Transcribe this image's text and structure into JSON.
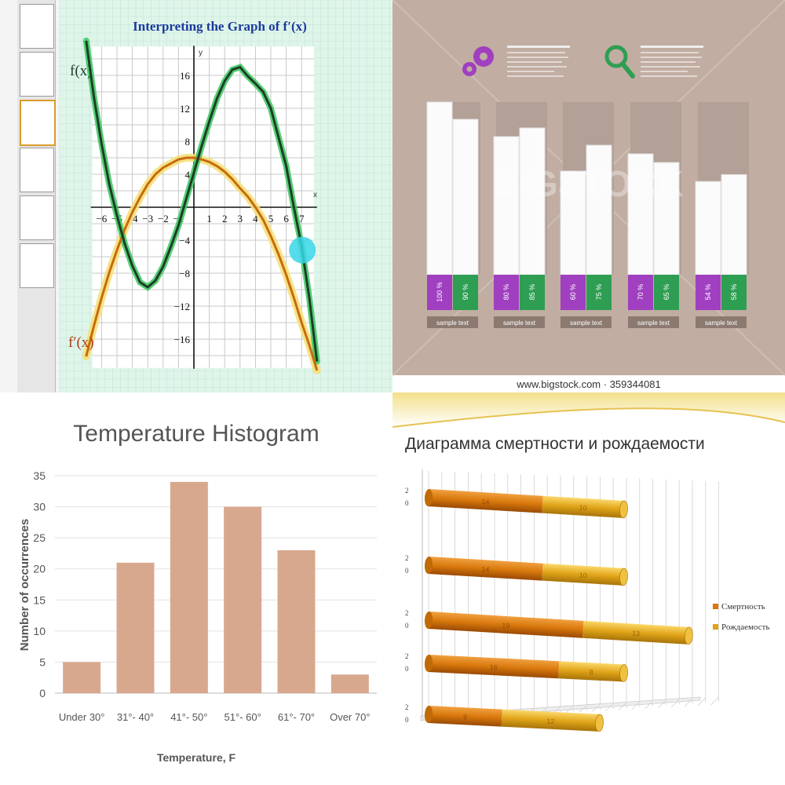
{
  "colors": {
    "graph_bg": "#dff5ea",
    "graph_grid": "#bfe6d4",
    "f_curve": "#1e3c2a",
    "f_highlight": "#38c85a",
    "fprime_curve": "#c76a10",
    "fprime_highlight": "#f5e07a",
    "title_blue": "#1a3a9c",
    "cyan_marker": "#38d6e8",
    "infographic_bg": "#c1ada2",
    "purple": "#a03fc0",
    "green": "#2e9e52",
    "hist_bar": "#d8a88e",
    "gold": "#e0a418",
    "orange": "#d8780c"
  },
  "icons": [
    "gears-icon",
    "magnifier-icon"
  ],
  "chart_data": [
    {
      "type": "line",
      "title": "Interpreting the Graph of f′(x)",
      "x_ticks": [
        "-6",
        "-5",
        "-4",
        "-3",
        "-2",
        "-1",
        "1",
        "2",
        "3",
        "4",
        "5",
        "6",
        "7"
      ],
      "y_ticks": [
        "16",
        "12",
        "8",
        "4",
        "-4",
        "-8",
        "-12",
        "-16"
      ],
      "x_axis_label": "x",
      "y_axis_label": "y",
      "xlim": [
        -6.8,
        8
      ],
      "ylim": [
        -20,
        20
      ],
      "series": [
        {
          "name": "f(x)",
          "x": [
            -7,
            -6.5,
            -6,
            -5.5,
            -5,
            -4.5,
            -4,
            -3.5,
            -3,
            -2.5,
            -2,
            -1.5,
            -1,
            -0.5,
            0,
            0.5,
            1,
            1.5,
            2,
            2.5,
            3,
            3.5,
            4,
            4.5,
            5,
            5.5,
            6,
            6.5,
            7,
            7.5,
            8
          ],
          "y": [
            20.2,
            13.4,
            7.7,
            2.8,
            -1,
            -4.4,
            -7.1,
            -9.1,
            -9.7,
            -8.9,
            -7.2,
            -4.8,
            -2.2,
            1,
            4.2,
            7.4,
            10.4,
            13.2,
            15.3,
            16.7,
            17,
            15.9,
            15,
            14,
            12,
            8.5,
            5,
            0,
            -4.7,
            -11,
            -18.7
          ]
        },
        {
          "name": "f′(x)",
          "x": [
            -7,
            -6.5,
            -6,
            -5.5,
            -5,
            -4.5,
            -4,
            -3.5,
            -3,
            -2.5,
            -2,
            -1.5,
            -1,
            -0.5,
            0,
            0.5,
            1,
            1.5,
            2,
            2.5,
            3,
            3.5,
            4,
            4.5,
            5,
            5.5,
            6,
            6.5,
            7,
            7.5,
            8
          ],
          "y": [
            -18.1,
            -14.4,
            -11,
            -7.9,
            -5.2,
            -2.7,
            -0.6,
            1.2,
            2.8,
            4,
            4.8,
            5.3,
            5.8,
            6,
            6,
            5.8,
            5.5,
            5,
            4.3,
            3.4,
            2.3,
            1.3,
            0,
            -1.5,
            -3.5,
            -5.7,
            -8.2,
            -11,
            -14,
            -16.7,
            -19.8
          ]
        }
      ],
      "legend": [
        "f(x)",
        "f′(x)"
      ]
    },
    {
      "type": "bar",
      "title": "",
      "watermark": "BIGSTOCK",
      "footer": "www.bigstock.com · 359344081",
      "sample_label": "sample text",
      "categories": [
        "sample text",
        "sample text",
        "sample text",
        "sample text",
        "sample text"
      ],
      "series": [
        {
          "values": [
            100,
            80,
            60,
            70,
            54
          ],
          "labels": [
            "100 %",
            "80 %",
            "60 %",
            "70 %",
            "54 %"
          ]
        },
        {
          "values": [
            90,
            85,
            75,
            65,
            58
          ],
          "labels": [
            "90 %",
            "85 %",
            "75 %",
            "65 %",
            "58 %"
          ]
        }
      ],
      "ylim": [
        0,
        100
      ]
    },
    {
      "type": "bar",
      "title": "Temperature Histogram",
      "xlabel": "Temperature, F",
      "ylabel": "Number of occurrences",
      "categories": [
        "Under 30°",
        "31°- 40°",
        "41°- 50°",
        "51°- 60°",
        "61°- 70°",
        "Over 70°"
      ],
      "values": [
        5,
        21,
        34,
        30,
        23,
        3
      ],
      "ylim": [
        0,
        35
      ],
      "y_ticks": [
        "0",
        "5",
        "10",
        "15",
        "20",
        "25",
        "30",
        "35"
      ]
    },
    {
      "type": "bar",
      "title": "Диаграмма смертности и рождаемости",
      "categories": [
        "2 0",
        "2 0",
        "2 0",
        "2 0",
        "2 0"
      ],
      "series": [
        {
          "name": "Смертность",
          "values": [
            14,
            14,
            19,
            16,
            9
          ]
        },
        {
          "name": "Рождаемость",
          "values": [
            10,
            10,
            13,
            8,
            12
          ]
        }
      ],
      "legend": [
        "Смертность",
        "Рождаемость"
      ],
      "legend_position": "right"
    }
  ]
}
